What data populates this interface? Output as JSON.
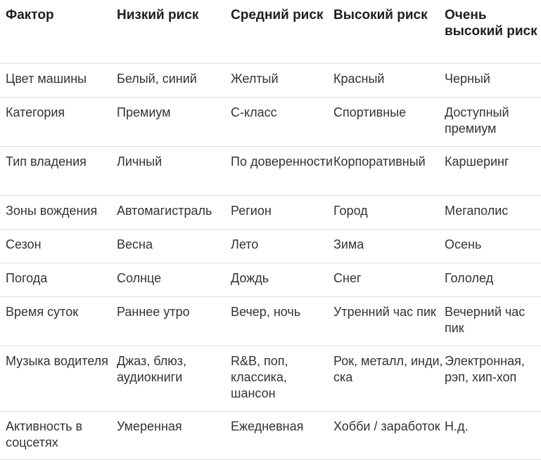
{
  "headers": [
    "Фактор",
    "Низкий риск",
    "Средний риск",
    "Высокий риск",
    "Очень высокий риск"
  ],
  "rows": [
    [
      "Цвет машины",
      "Белый, синий",
      "Желтый",
      "Красный",
      "Черный"
    ],
    [
      "Категория",
      "Премиум",
      "С-класс",
      "Спортивные",
      "Доступный премиум"
    ],
    [
      "Тип владения",
      "Личный",
      "По доверенности",
      "Корпоративный",
      "Каршеринг"
    ],
    [
      "Зоны вождения",
      "Автомагистраль",
      "Регион",
      "Город",
      "Мегаполис"
    ],
    [
      "Сезон",
      "Весна",
      "Лето",
      "Зима",
      "Осень"
    ],
    [
      "Погода",
      "Солнце",
      "Дождь",
      "Снег",
      "Гололед"
    ],
    [
      "Время суток",
      "Раннее утро",
      "Вечер, ночь",
      "Утренний час пик",
      "Вечерний час пик"
    ],
    [
      "Музыка водителя",
      "Джаз, блюз, аудиокниги",
      "R&B, поп, классика, шансон",
      "Рок, металл, инди, ска",
      "Электронная, рэп, хип-хоп"
    ],
    [
      "Активность в соцсетях",
      "Умеренная",
      "Ежедневная",
      "Хобби / заработок",
      "Н.д."
    ]
  ]
}
